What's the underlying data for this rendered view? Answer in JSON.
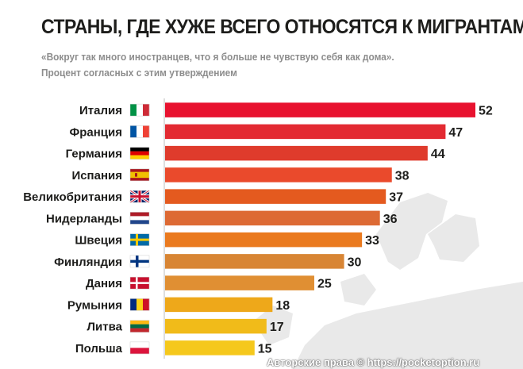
{
  "header": {
    "title": "СТРАНЫ, ГДЕ ХУЖЕ ВСЕГО ОТНОСЯТСЯ К МИГРАНТАМ",
    "subtitle_line1": "«Вокруг так много иностранцев, что я больше не чувствую себя как дома».",
    "subtitle_line2": "Процент согласных с этим утверждением"
  },
  "chart_data": {
    "type": "bar",
    "orientation": "horizontal",
    "title": "СТРАНЫ, ГДЕ ХУЖЕ ВСЕГО ОТНОСЯТСЯ К МИГРАНТАМ",
    "xlabel": "",
    "ylabel": "",
    "xlim": [
      0,
      52
    ],
    "grid": false,
    "categories": [
      "Италия",
      "Франция",
      "Германия",
      "Испания",
      "Великобритания",
      "Нидерланды",
      "Швеция",
      "Финляндия",
      "Дания",
      "Румыния",
      "Литва",
      "Польша"
    ],
    "values": [
      52,
      47,
      44,
      38,
      37,
      36,
      33,
      30,
      25,
      18,
      17,
      15
    ],
    "flags": [
      "italy-flag",
      "france-flag",
      "germany-flag",
      "spain-flag",
      "uk-flag",
      "netherlands-flag",
      "sweden-flag",
      "finland-flag",
      "denmark-flag",
      "romania-flag",
      "lithuania-flag",
      "poland-flag"
    ],
    "bar_colors": [
      "#e8122f",
      "#e32a32",
      "#df3b2c",
      "#ea4a2c",
      "#e45a1f",
      "#dd6a34",
      "#ea7a1f",
      "#d88534",
      "#e08f33",
      "#eea81a",
      "#f1bb19",
      "#f5c81c"
    ]
  },
  "footer": {
    "copyright": "Авторские права © https://pocketoption.ru"
  }
}
